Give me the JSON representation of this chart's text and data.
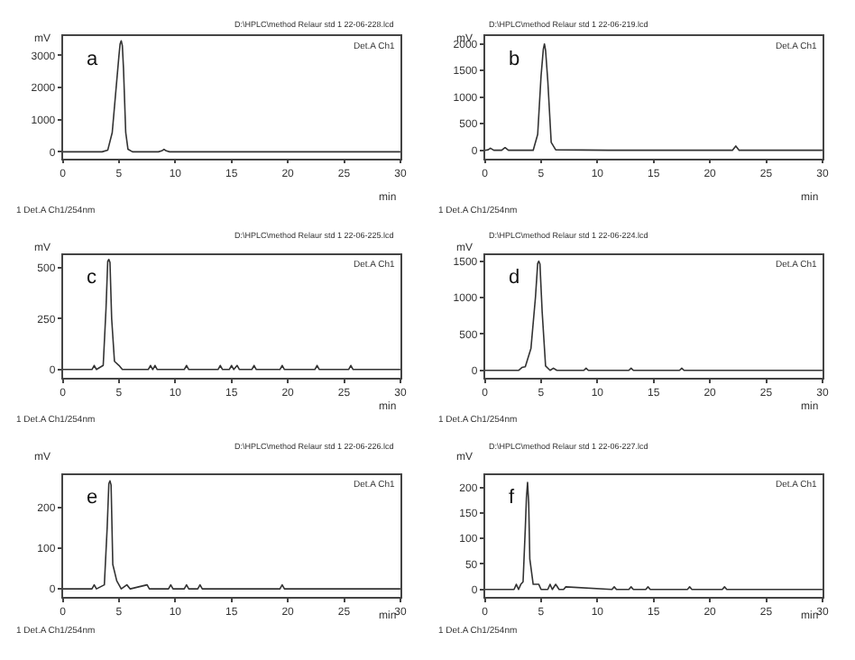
{
  "chart_data": [
    {
      "type": "line",
      "title": "D:\\HPLC\\method Relaur std 1 22-06-228.lcd",
      "xlabel": "min",
      "ylabel": "mV",
      "annotations": [
        "a",
        "Det.A Ch1",
        "1 Det.A Ch1/254nm"
      ],
      "color": "#333333",
      "marker": "none",
      "x": [
        0,
        3.5,
        4.0,
        4.4,
        4.8,
        5.0,
        5.1,
        5.2,
        5.3,
        5.4,
        5.6,
        5.8,
        6.2,
        8.5,
        8.8,
        9.0,
        9.2,
        9.5,
        12,
        30
      ],
      "values": [
        0,
        0,
        50,
        600,
        2200,
        3000,
        3350,
        3450,
        3300,
        2600,
        600,
        80,
        0,
        0,
        30,
        80,
        30,
        0,
        0,
        0
      ],
      "xlim": [
        0,
        30
      ],
      "xticks": [
        0,
        5,
        10,
        15,
        20,
        25,
        30
      ],
      "ylim": [
        -200,
        3600
      ],
      "yticks": [
        0,
        1000,
        2000,
        3000
      ]
    },
    {
      "type": "line",
      "title": "D:\\HPLC\\method Relaur std 1 22-06-219.lcd",
      "xlabel": "min",
      "ylabel": "mV",
      "annotations": [
        "b",
        "Det.A Ch1",
        "1 Det.A Ch1/254nm"
      ],
      "color": "#333333",
      "marker": "none",
      "x": [
        0,
        0.3,
        0.5,
        0.8,
        1.5,
        1.8,
        2.1,
        4.3,
        4.7,
        5.0,
        5.2,
        5.3,
        5.4,
        5.6,
        5.9,
        6.3,
        11,
        22.0,
        22.3,
        22.6,
        30
      ],
      "values": [
        0,
        10,
        40,
        0,
        0,
        50,
        0,
        0,
        300,
        1400,
        1900,
        2000,
        1880,
        1300,
        150,
        10,
        0,
        0,
        80,
        0,
        0
      ],
      "xlim": [
        0,
        30
      ],
      "xticks": [
        0,
        5,
        10,
        15,
        20,
        25,
        30
      ],
      "ylim": [
        -150,
        2150
      ],
      "yticks": [
        0,
        500,
        1000,
        1500,
        2000
      ]
    },
    {
      "type": "line",
      "title": "D:\\HPLC\\method Relaur std 1 22-06-225.lcd",
      "xlabel": "min",
      "ylabel": "mV",
      "annotations": [
        "c",
        "Det.A Ch1",
        "1 Det.A Ch1/254nm"
      ],
      "color": "#333333",
      "marker": "none",
      "x": [
        0,
        2.6,
        2.8,
        3.0,
        3.6,
        3.85,
        4.0,
        4.1,
        4.2,
        4.35,
        4.6,
        5.0,
        5.3,
        7.6,
        7.8,
        8.0,
        8.2,
        8.4,
        10.8,
        11.0,
        11.2,
        13.8,
        14.0,
        14.2,
        14.8,
        15.0,
        15.2,
        15.5,
        15.7,
        16.8,
        17.0,
        17.2,
        19.3,
        19.5,
        19.7,
        22.4,
        22.6,
        22.8,
        25.4,
        25.6,
        25.8,
        30
      ],
      "values": [
        0,
        0,
        20,
        0,
        20,
        300,
        530,
        540,
        525,
        250,
        40,
        20,
        0,
        0,
        20,
        0,
        20,
        0,
        0,
        20,
        0,
        0,
        20,
        0,
        0,
        20,
        0,
        20,
        0,
        0,
        20,
        0,
        0,
        20,
        0,
        0,
        20,
        0,
        0,
        20,
        0,
        0
      ],
      "xlim": [
        0,
        30
      ],
      "xticks": [
        0,
        5,
        10,
        15,
        20,
        25,
        30
      ],
      "ylim": [
        -40,
        560
      ],
      "yticks": [
        0,
        250,
        500
      ]
    },
    {
      "type": "line",
      "title": "D:\\HPLC\\method Relaur std 1 22-06-224.lcd",
      "xlabel": "min",
      "ylabel": "mV",
      "annotations": [
        "d",
        "Det.A Ch1",
        "1 Det.A Ch1/254nm"
      ],
      "color": "#333333",
      "marker": "none",
      "x": [
        0,
        3.0,
        3.3,
        3.6,
        4.1,
        4.5,
        4.7,
        4.8,
        4.9,
        5.1,
        5.4,
        5.8,
        6.1,
        6.4,
        8.8,
        9.0,
        9.2,
        12.8,
        13.0,
        13.2,
        17.3,
        17.5,
        17.7,
        30
      ],
      "values": [
        0,
        0,
        40,
        50,
        300,
        1000,
        1470,
        1500,
        1460,
        800,
        60,
        0,
        30,
        0,
        0,
        30,
        0,
        0,
        30,
        0,
        0,
        30,
        0,
        0
      ],
      "xlim": [
        0,
        30
      ],
      "xticks": [
        0,
        5,
        10,
        15,
        20,
        25,
        30
      ],
      "ylim": [
        -100,
        1580
      ],
      "yticks": [
        0,
        500,
        1000,
        1500
      ]
    },
    {
      "type": "line",
      "title": "D:\\HPLC\\method Relaur std 1 22-06-226.lcd",
      "xlabel": "min",
      "ylabel": "mV",
      "annotations": [
        "e",
        "Det.A Ch1",
        "1 Det.A Ch1/254nm"
      ],
      "color": "#333333",
      "marker": "none",
      "x": [
        0,
        2.6,
        2.8,
        3.0,
        3.7,
        3.95,
        4.1,
        4.2,
        4.3,
        4.45,
        4.8,
        5.2,
        5.7,
        6.0,
        7.5,
        7.7,
        9.4,
        9.6,
        9.8,
        10.8,
        11.0,
        11.2,
        12.0,
        12.2,
        12.4,
        19.3,
        19.5,
        19.7,
        30
      ],
      "values": [
        0,
        0,
        10,
        0,
        10,
        150,
        258,
        265,
        255,
        60,
        20,
        0,
        10,
        0,
        10,
        0,
        0,
        10,
        0,
        0,
        10,
        0,
        0,
        10,
        0,
        0,
        10,
        0,
        0
      ],
      "xlim": [
        0,
        30
      ],
      "xticks": [
        0,
        5,
        10,
        15,
        20,
        25,
        30
      ],
      "ylim": [
        -20,
        280
      ],
      "yticks": [
        0,
        100,
        200
      ]
    },
    {
      "type": "line",
      "title": "D:\\HPLC\\method Relaur std 1 22-06-227.lcd",
      "xlabel": "min",
      "ylabel": "mV",
      "annotations": [
        "f",
        "Det.A Ch1",
        "1 Det.A Ch1/254nm"
      ],
      "color": "#333333",
      "marker": "none",
      "x": [
        0,
        2.6,
        2.8,
        3.0,
        3.2,
        3.4,
        3.6,
        3.7,
        3.8,
        3.9,
        4.0,
        4.3,
        4.8,
        5.0,
        5.6,
        5.8,
        6.0,
        6.3,
        6.6,
        7.0,
        7.2,
        11.3,
        11.5,
        11.7,
        12.8,
        13.0,
        13.2,
        14.3,
        14.5,
        14.7,
        18.0,
        18.2,
        18.4,
        21.1,
        21.3,
        21.5,
        30
      ],
      "values": [
        0,
        0,
        10,
        0,
        10,
        15,
        120,
        180,
        210,
        170,
        60,
        10,
        10,
        0,
        0,
        10,
        0,
        10,
        0,
        0,
        5,
        0,
        5,
        0,
        0,
        5,
        0,
        0,
        5,
        0,
        0,
        5,
        0,
        0,
        5,
        0,
        0
      ],
      "xlim": [
        0,
        30
      ],
      "xticks": [
        0,
        5,
        10,
        15,
        20,
        25,
        30
      ],
      "ylim": [
        -15,
        225
      ],
      "yticks": [
        0,
        50,
        100,
        150,
        200
      ]
    }
  ]
}
